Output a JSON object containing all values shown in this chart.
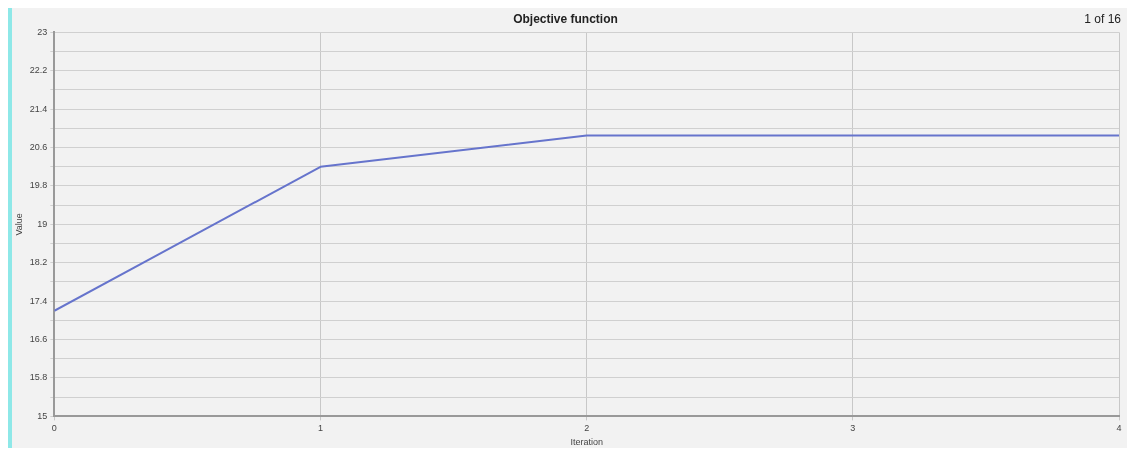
{
  "chart_data": {
    "type": "line",
    "title": "Objective function",
    "xlabel": "Iteration",
    "ylabel": "Value",
    "annotations": [
      "1 of 16"
    ],
    "x": [
      0,
      1,
      2,
      3,
      4
    ],
    "series": [
      {
        "color": "#6674cc",
        "values": [
          17.2,
          20.2,
          20.85,
          20.85,
          20.85
        ]
      }
    ],
    "xlim": [
      0,
      4
    ],
    "xticks": [
      0,
      1,
      2,
      3,
      4
    ],
    "ylim": [
      15,
      23
    ],
    "yticks": [
      15,
      {
        "value": 15.4,
        "label": null
      },
      15.8,
      {
        "value": 16.2,
        "label": null
      },
      16.6,
      {
        "value": 17,
        "label": null
      },
      17.4,
      {
        "value": 17.8,
        "label": null
      },
      18.2,
      {
        "value": 18.6,
        "label": null
      },
      19,
      {
        "value": 19.4,
        "label": null
      },
      19.8,
      {
        "value": 20.2,
        "label": null
      },
      20.6,
      {
        "value": 21,
        "label": null
      },
      21.4,
      {
        "value": 21.8,
        "label": null
      },
      22.2,
      {
        "value": 22.6,
        "label": null
      },
      23
    ],
    "grid": true,
    "legend": false,
    "marker": "none",
    "line_style": "solid"
  }
}
